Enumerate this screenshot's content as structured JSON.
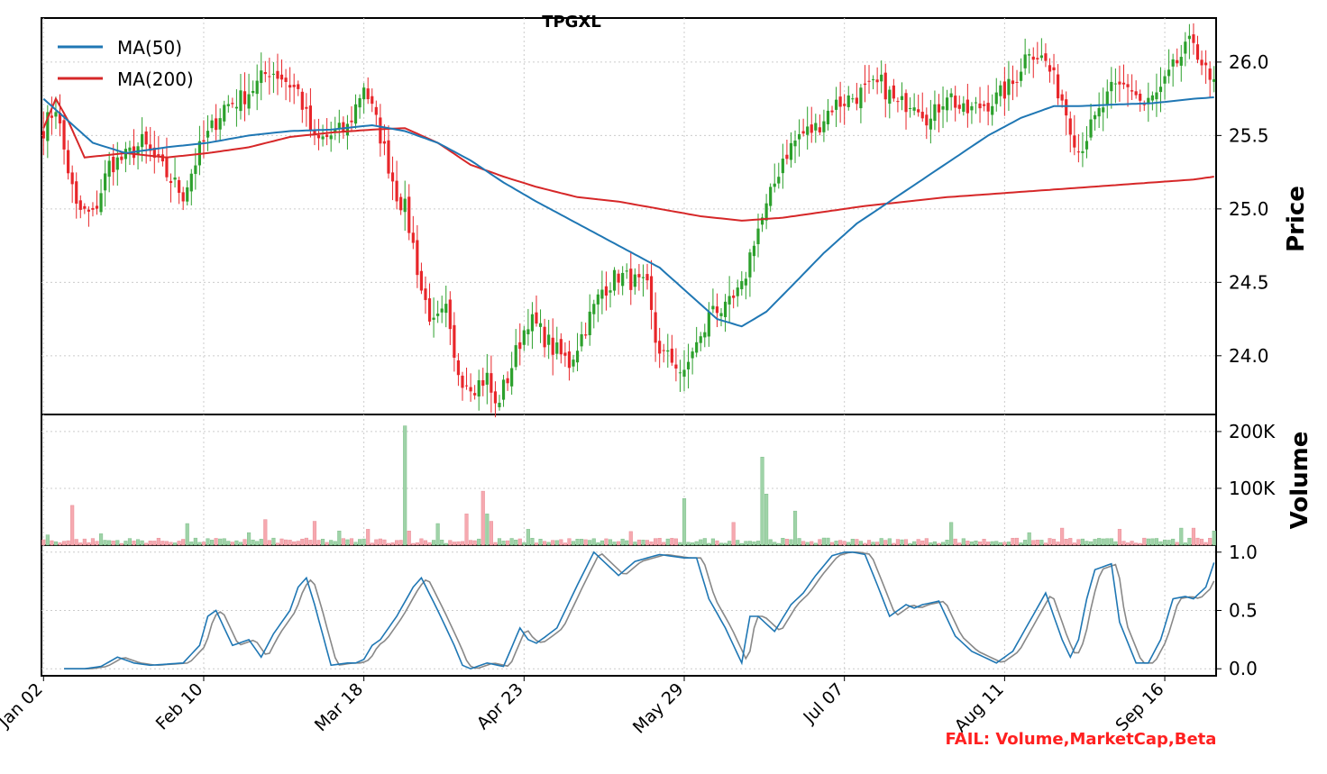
{
  "chart_data": {
    "type": "candlestick",
    "title": "TPGXL",
    "status_text": "FAIL: Volume,MarketCap,Beta",
    "x_tick_labels": [
      "Jan 02",
      "Feb 10",
      "Mar 18",
      "Apr 23",
      "May 29",
      "Jul 07",
      "Aug 11",
      "Sep 16"
    ],
    "x_tick_index": [
      0,
      39,
      78,
      117,
      156,
      195,
      234,
      273
    ],
    "grid": true,
    "colors": {
      "up": "#2ca02c",
      "down": "#e8262a",
      "vol_up": "#9fd3a8",
      "vol_down": "#f6a9b0",
      "ma50": "#1f77b4",
      "ma200": "#d62728",
      "k_line": "#1f77b4",
      "d_line": "#888888",
      "fail_text": "#ff2020"
    },
    "price_panel": {
      "ylabel": "Price",
      "ylim": [
        23.6,
        26.3
      ],
      "yticks": [
        24.0,
        24.5,
        25.0,
        25.5,
        26.0
      ],
      "ytick_labels": [
        "24.0",
        "24.5",
        "25.0",
        "25.5",
        "26.0"
      ],
      "legend_position": "upper-left",
      "legend": [
        {
          "name": "MA(50)",
          "color": "#1f77b4"
        },
        {
          "name": "MA(200)",
          "color": "#d62728"
        }
      ],
      "anchors_index": [
        0,
        3,
        5,
        8,
        12,
        16,
        20,
        24,
        28,
        34,
        38,
        42,
        44,
        48,
        52,
        55,
        58,
        62,
        66,
        70,
        74,
        78,
        82,
        86,
        88,
        90,
        92,
        95,
        98,
        100,
        102,
        105,
        108,
        110,
        113,
        116,
        118,
        120,
        124,
        128,
        132,
        136,
        140,
        144,
        147,
        149,
        151,
        154,
        156,
        158,
        160,
        163,
        166,
        170,
        173,
        176,
        180,
        184,
        188,
        192,
        196,
        200,
        204,
        208,
        212,
        216,
        220,
        224,
        228,
        232,
        236,
        240,
        244,
        248,
        252,
        256,
        260,
        264,
        268,
        272,
        276,
        280,
        284
      ],
      "anchors_close": [
        25.55,
        25.7,
        25.4,
        25.0,
        24.95,
        25.3,
        25.35,
        25.45,
        25.3,
        25.1,
        25.4,
        25.6,
        25.7,
        25.75,
        25.85,
        25.95,
        25.9,
        25.8,
        25.45,
        25.5,
        25.55,
        25.85,
        25.5,
        25.1,
        25.0,
        24.75,
        24.45,
        24.2,
        24.3,
        23.95,
        23.85,
        23.8,
        23.85,
        23.65,
        23.85,
        24.1,
        24.25,
        24.2,
        24.05,
        23.95,
        24.2,
        24.45,
        24.55,
        24.5,
        24.45,
        24.1,
        24.0,
        23.95,
        23.85,
        24.05,
        24.1,
        24.35,
        24.3,
        24.45,
        24.8,
        25.0,
        25.35,
        25.5,
        25.55,
        25.7,
        25.75,
        25.8,
        25.85,
        25.7,
        25.75,
        25.6,
        25.8,
        25.65,
        25.7,
        25.75,
        25.85,
        26.1,
        26.0,
        25.75,
        25.4,
        25.6,
        25.8,
        25.85,
        25.7,
        25.8,
        26.0,
        26.15,
        25.85
      ],
      "ma50_anchors_index": [
        0,
        6,
        12,
        20,
        30,
        40,
        50,
        60,
        70,
        80,
        88,
        96,
        104,
        112,
        120,
        130,
        140,
        150,
        158,
        164,
        170,
        176,
        182,
        190,
        198,
        206,
        214,
        222,
        230,
        238,
        246,
        252,
        260,
        270,
        280,
        285
      ],
      "ma50_anchors": [
        25.75,
        25.6,
        25.45,
        25.38,
        25.42,
        25.45,
        25.5,
        25.53,
        25.54,
        25.57,
        25.53,
        25.45,
        25.33,
        25.18,
        25.05,
        24.9,
        24.75,
        24.6,
        24.4,
        24.25,
        24.2,
        24.3,
        24.47,
        24.7,
        24.9,
        25.05,
        25.2,
        25.35,
        25.5,
        25.62,
        25.7,
        25.7,
        25.71,
        25.72,
        25.75,
        25.76
      ],
      "ma200_anchors_index": [
        0,
        3,
        6,
        10,
        20,
        30,
        40,
        50,
        60,
        70,
        80,
        88,
        96,
        104,
        112,
        120,
        130,
        140,
        150,
        160,
        170,
        180,
        190,
        200,
        210,
        220,
        230,
        240,
        250,
        260,
        270,
        280,
        285
      ],
      "ma200_anchors": [
        25.55,
        25.75,
        25.6,
        25.35,
        25.38,
        25.35,
        25.38,
        25.42,
        25.49,
        25.52,
        25.54,
        25.55,
        25.45,
        25.3,
        25.22,
        25.15,
        25.08,
        25.05,
        25.0,
        24.95,
        24.92,
        24.94,
        24.98,
        25.02,
        25.05,
        25.08,
        25.1,
        25.12,
        25.14,
        25.16,
        25.18,
        25.2,
        25.22
      ]
    },
    "volume_panel": {
      "ylabel": "Volume",
      "ylim": [
        0,
        230000
      ],
      "yticks": [
        100000,
        200000
      ],
      "ytick_labels": [
        "100K",
        "200K"
      ],
      "base_volume": 6000,
      "spikes": [
        {
          "i": 1,
          "v": 18000
        },
        {
          "i": 7,
          "v": 70000
        },
        {
          "i": 14,
          "v": 20000
        },
        {
          "i": 35,
          "v": 38000
        },
        {
          "i": 50,
          "v": 22000
        },
        {
          "i": 54,
          "v": 45000
        },
        {
          "i": 66,
          "v": 42000
        },
        {
          "i": 72,
          "v": 25000
        },
        {
          "i": 79,
          "v": 28000
        },
        {
          "i": 88,
          "v": 210000
        },
        {
          "i": 89,
          "v": 25000
        },
        {
          "i": 96,
          "v": 38000
        },
        {
          "i": 103,
          "v": 55000
        },
        {
          "i": 107,
          "v": 95000
        },
        {
          "i": 108,
          "v": 55000
        },
        {
          "i": 109,
          "v": 42000
        },
        {
          "i": 118,
          "v": 28000
        },
        {
          "i": 143,
          "v": 24000
        },
        {
          "i": 156,
          "v": 82000
        },
        {
          "i": 168,
          "v": 40000
        },
        {
          "i": 175,
          "v": 155000
        },
        {
          "i": 176,
          "v": 90000
        },
        {
          "i": 183,
          "v": 60000
        },
        {
          "i": 221,
          "v": 40000
        },
        {
          "i": 240,
          "v": 22000
        },
        {
          "i": 248,
          "v": 30000
        },
        {
          "i": 262,
          "v": 28000
        },
        {
          "i": 277,
          "v": 30000
        },
        {
          "i": 280,
          "v": 30000
        },
        {
          "i": 285,
          "v": 25000
        }
      ]
    },
    "stoch_panel": {
      "ylim": [
        -0.06,
        1.06
      ],
      "yticks": [
        0.0,
        0.5,
        1.0
      ],
      "ytick_labels": [
        "0.0",
        "0.5",
        "1.0"
      ],
      "k_anchors_index": [
        5,
        10,
        14,
        18,
        22,
        26,
        30,
        34,
        38,
        40,
        42,
        46,
        50,
        53,
        56,
        60,
        62,
        64,
        66,
        70,
        74,
        76,
        78,
        80,
        82,
        86,
        90,
        92,
        96,
        100,
        102,
        104,
        108,
        112,
        116,
        118,
        120,
        122,
        125,
        130,
        134,
        140,
        144,
        150,
        152,
        156,
        159,
        162,
        166,
        170,
        172,
        174,
        178,
        182,
        185,
        188,
        192,
        195,
        197,
        200,
        203,
        206,
        210,
        212,
        214,
        218,
        222,
        226,
        229,
        232,
        236,
        240,
        244,
        248,
        250,
        252,
        254,
        256,
        260,
        262,
        266,
        269,
        272,
        275,
        278,
        280,
        283,
        285
      ],
      "k_anchors": [
        0.0,
        0.0,
        0.02,
        0.1,
        0.05,
        0.03,
        0.04,
        0.05,
        0.2,
        0.45,
        0.5,
        0.2,
        0.25,
        0.1,
        0.3,
        0.5,
        0.7,
        0.78,
        0.55,
        0.03,
        0.05,
        0.05,
        0.08,
        0.2,
        0.25,
        0.45,
        0.7,
        0.78,
        0.5,
        0.2,
        0.03,
        0.0,
        0.05,
        0.02,
        0.35,
        0.25,
        0.22,
        0.27,
        0.35,
        0.72,
        1.0,
        0.8,
        0.92,
        0.98,
        0.97,
        0.95,
        0.95,
        0.6,
        0.35,
        0.05,
        0.45,
        0.45,
        0.32,
        0.55,
        0.65,
        0.8,
        0.97,
        1.0,
        1.0,
        0.98,
        0.72,
        0.45,
        0.55,
        0.52,
        0.55,
        0.58,
        0.28,
        0.15,
        0.1,
        0.05,
        0.15,
        0.4,
        0.65,
        0.25,
        0.1,
        0.25,
        0.6,
        0.85,
        0.9,
        0.4,
        0.05,
        0.05,
        0.25,
        0.6,
        0.62,
        0.6,
        0.7,
        0.91
      ],
      "d_lag": 1.5
    }
  }
}
